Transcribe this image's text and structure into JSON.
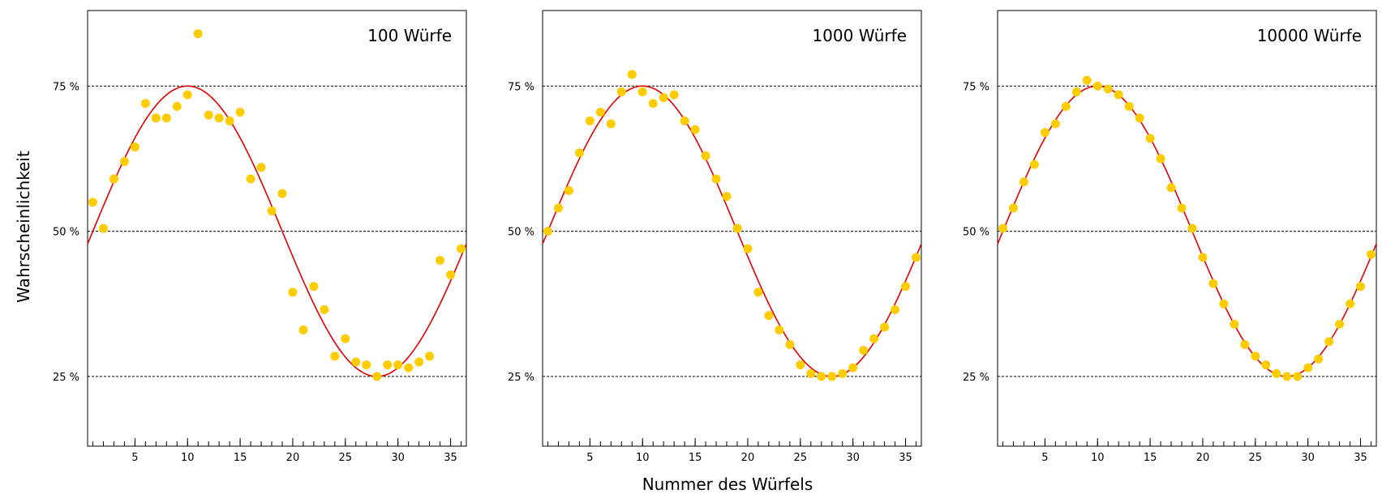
{
  "figure": {
    "ylabel": "Wahrscheinlichkeit",
    "xlabel": "Nummer des Würfels"
  },
  "colors": {
    "points": "#FFCC00",
    "curve": "#E00000",
    "grid": "#000000"
  },
  "chart_data": [
    {
      "type": "scatter",
      "title": "100 Würfe",
      "xlim": [
        0.5,
        36.5
      ],
      "ylim": [
        13,
        88
      ],
      "yticks": [
        25,
        50,
        75
      ],
      "ytick_labels": [
        "25 %",
        "50 %",
        "75 %"
      ],
      "xticks": [
        5,
        10,
        15,
        20,
        25,
        30,
        35
      ],
      "grid": "horizontal dashed at 25, 50, 75",
      "curve": {
        "type": "sine",
        "center": 50,
        "amplitude": 25,
        "peak_x": 10,
        "period": 36
      },
      "series": [
        {
          "x": [
            1,
            2,
            3,
            4,
            5,
            6,
            7,
            8,
            9,
            10,
            11,
            12,
            13,
            14,
            15,
            16,
            17,
            18,
            19,
            20,
            21,
            22,
            23,
            24,
            25,
            26,
            27,
            28,
            29,
            30,
            31,
            32,
            33,
            34,
            35,
            36
          ],
          "y": [
            55.0,
            50.5,
            59.0,
            62.0,
            64.5,
            72.0,
            69.5,
            69.5,
            71.5,
            73.5,
            84.0,
            70.0,
            69.5,
            69.0,
            70.5,
            59.0,
            61.0,
            53.5,
            56.5,
            39.5,
            33.0,
            40.5,
            36.5,
            28.5,
            31.5,
            27.5,
            27.0,
            25.0,
            27.0,
            27.0,
            26.5,
            27.5,
            28.5,
            45.0,
            42.5,
            47.0
          ]
        }
      ]
    },
    {
      "type": "scatter",
      "title": "1000 Würfe",
      "xlim": [
        0.5,
        36.5
      ],
      "ylim": [
        13,
        88
      ],
      "yticks": [
        25,
        50,
        75
      ],
      "ytick_labels": [
        "25 %",
        "50 %",
        "75 %"
      ],
      "xticks": [
        5,
        10,
        15,
        20,
        25,
        30,
        35
      ],
      "grid": "horizontal dashed at 25, 50, 75",
      "curve": {
        "type": "sine",
        "center": 50,
        "amplitude": 25,
        "peak_x": 10,
        "period": 36
      },
      "series": [
        {
          "x": [
            1,
            2,
            3,
            4,
            5,
            6,
            7,
            8,
            9,
            10,
            11,
            12,
            13,
            14,
            15,
            16,
            17,
            18,
            19,
            20,
            21,
            22,
            23,
            24,
            25,
            26,
            27,
            28,
            29,
            30,
            31,
            32,
            33,
            34,
            35,
            36
          ],
          "y": [
            50.0,
            54.0,
            57.0,
            63.5,
            69.0,
            70.5,
            68.5,
            74.0,
            77.0,
            74.0,
            72.0,
            73.0,
            73.5,
            69.0,
            67.5,
            63.0,
            59.0,
            56.0,
            50.5,
            47.0,
            39.5,
            35.5,
            33.0,
            30.5,
            27.0,
            25.5,
            25.0,
            25.0,
            25.5,
            26.5,
            29.5,
            31.5,
            33.5,
            36.5,
            40.5,
            45.5
          ]
        }
      ]
    },
    {
      "type": "scatter",
      "title": "10000 Würfe",
      "xlim": [
        0.5,
        36.5
      ],
      "ylim": [
        13,
        88
      ],
      "yticks": [
        25,
        50,
        75
      ],
      "ytick_labels": [
        "25 %",
        "50 %",
        "75 %"
      ],
      "xticks": [
        5,
        10,
        15,
        20,
        25,
        30,
        35
      ],
      "grid": "horizontal dashed at 25, 50, 75",
      "curve": {
        "type": "sine",
        "center": 50,
        "amplitude": 25,
        "peak_x": 10,
        "period": 36
      },
      "series": [
        {
          "x": [
            1,
            2,
            3,
            4,
            5,
            6,
            7,
            8,
            9,
            10,
            11,
            12,
            13,
            14,
            15,
            16,
            17,
            18,
            19,
            20,
            21,
            22,
            23,
            24,
            25,
            26,
            27,
            28,
            29,
            30,
            31,
            32,
            33,
            34,
            35,
            36
          ],
          "y": [
            50.5,
            54.0,
            58.5,
            61.5,
            67.0,
            68.5,
            71.5,
            74.0,
            76.0,
            75.0,
            74.5,
            73.5,
            71.5,
            69.5,
            66.0,
            62.5,
            57.5,
            54.0,
            50.5,
            45.5,
            41.0,
            37.5,
            34.0,
            30.5,
            28.5,
            27.0,
            25.5,
            25.0,
            25.0,
            26.5,
            28.0,
            31.0,
            34.0,
            37.5,
            40.5,
            46.0
          ]
        }
      ]
    }
  ]
}
